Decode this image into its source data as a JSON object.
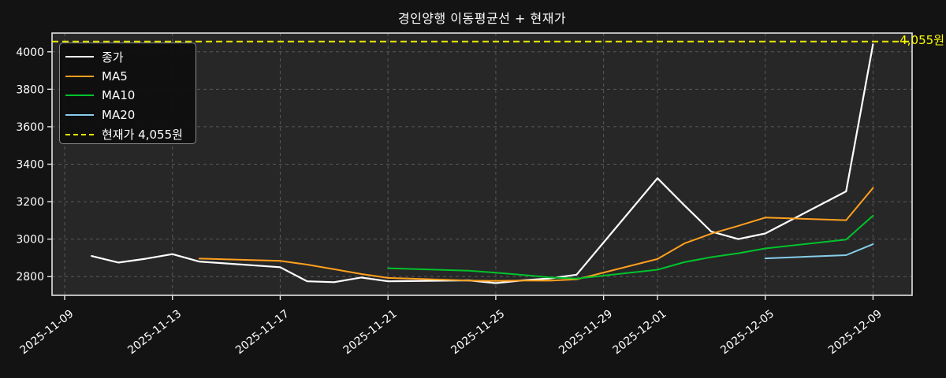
{
  "title": "경인양행 이동평균선 + 현재가",
  "annotation": {
    "label": "4,055원"
  },
  "legend": [
    {
      "label": "종가",
      "color": "#ffffff",
      "dash": false
    },
    {
      "label": "MA5",
      "color": "#ffa01e",
      "dash": false
    },
    {
      "label": "MA10",
      "color": "#00c32b",
      "dash": false
    },
    {
      "label": "MA20",
      "color": "#87ceeb",
      "dash": false
    },
    {
      "label": "현재가 4,055원",
      "color": "#e8e800",
      "dash": true
    }
  ],
  "chart_data": {
    "type": "line",
    "title": "경인양행 이동평균선 + 현재가",
    "xlabel": "",
    "ylabel": "",
    "x_base": "2025-11-09",
    "x_dates": [
      "2025-11-10",
      "2025-11-11",
      "2025-11-12",
      "2025-11-13",
      "2025-11-14",
      "2025-11-17",
      "2025-11-18",
      "2025-11-19",
      "2025-11-20",
      "2025-11-21",
      "2025-11-24",
      "2025-11-25",
      "2025-11-26",
      "2025-11-27",
      "2025-11-28",
      "2025-12-01",
      "2025-12-02",
      "2025-12-03",
      "2025-12-04",
      "2025-12-05",
      "2025-12-08",
      "2025-12-09"
    ],
    "series": [
      {
        "key": "close",
        "name": "종가",
        "color": "#ffffff",
        "width": 2.2,
        "start_index": 0,
        "values": [
          2910,
          2875,
          2895,
          2920,
          2880,
          2850,
          2775,
          2770,
          2795,
          2775,
          2780,
          2765,
          2780,
          2790,
          2810,
          3325,
          3180,
          3040,
          3000,
          3030,
          3255,
          4040
        ]
      },
      {
        "key": "ma5",
        "name": "MA5",
        "color": "#ffa01e",
        "width": 2,
        "start_index": 4,
        "values": [
          2896,
          2884,
          2864,
          2839,
          2814,
          2793,
          2779,
          2777,
          2779,
          2778,
          2785,
          2894,
          2977,
          3029,
          3071,
          3115,
          3101,
          3273
        ]
      },
      {
        "key": "ma10",
        "name": "MA10",
        "color": "#00c32b",
        "width": 2,
        "start_index": 9,
        "values": [
          2844.5,
          2831.5,
          2820.5,
          2809,
          2796,
          2789,
          2836.5,
          2877,
          2904,
          2924.5,
          2950,
          2997.5,
          3125
        ]
      },
      {
        "key": "ma20",
        "name": "MA20",
        "color": "#87ceeb",
        "width": 2,
        "start_index": 19,
        "values": [
          2897.25,
          2914.5,
          2972.75
        ]
      }
    ],
    "current_price": {
      "label": "현재가",
      "value": 4055,
      "display": "4,055원",
      "color": "#e8e800"
    },
    "yticks": [
      2800,
      3000,
      3200,
      3400,
      3600,
      3800,
      4000
    ],
    "xticks": [
      {
        "label": "2025-11-09",
        "date": "2025-11-09"
      },
      {
        "label": "2025-11-13",
        "date": "2025-11-13"
      },
      {
        "label": "2025-11-17",
        "date": "2025-11-17"
      },
      {
        "label": "2025-11-21",
        "date": "2025-11-21"
      },
      {
        "label": "2025-11-25",
        "date": "2025-11-25"
      },
      {
        "label": "2025-11-29",
        "date": "2025-11-29"
      },
      {
        "label": "2025-12-01",
        "date": "2025-12-01"
      },
      {
        "label": "2025-12-05",
        "date": "2025-12-05"
      },
      {
        "label": "2025-12-09",
        "date": "2025-12-09"
      }
    ],
    "ylim": [
      2700,
      4100
    ],
    "xlim_days": [
      -0.468,
      31.45
    ],
    "grid": true,
    "legend_position": "upper-left",
    "colors": {
      "figure_bg": "#131313",
      "axes_bg": "#272727",
      "grid": "#585858",
      "spine": "#e3e3e3",
      "tick_label": "#ffffff",
      "annotation": "#ffff00"
    }
  }
}
